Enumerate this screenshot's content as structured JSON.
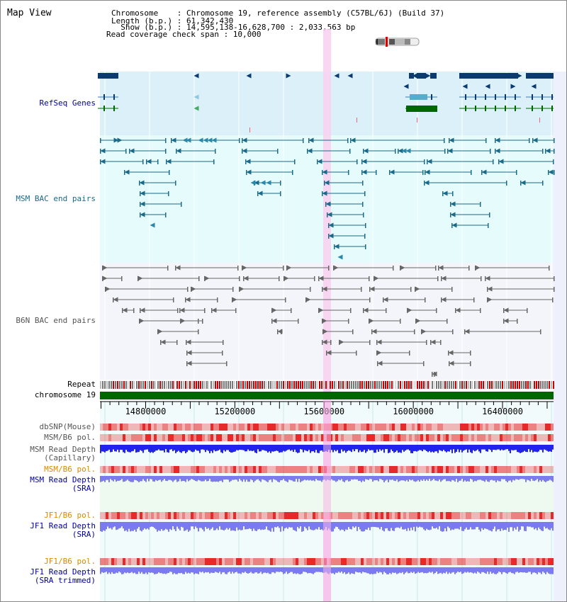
{
  "header": {
    "title": "Map View",
    "info_lines": [
      "Chromosome    : Chromosome 19, reference assembly (C57BL/6J) (Build 37)",
      "Length (b.p.) : 61,342,430",
      "  Show (b.p.) : 14,595,138-16,628,700 : 2,033,563 bp",
      "Read coverage check span : 10,000"
    ]
  },
  "tracks": {
    "refseq_genes": "RefSeq Genes",
    "msm_bac": "MSM BAC end pairs",
    "b6n_bac": "B6N BAC end pairs",
    "repeat": "Repeat",
    "chromosome": "chromosome 19",
    "dbsnp": "dbSNP(Mouse)",
    "msm_b6_pol_1": "MSM/B6 pol.",
    "msm_read_depth_cap": "MSM Read Depth\n(Capillary)",
    "msm_b6_pol_2": "MSM/B6 pol.",
    "msm_read_depth_sra": "MSM Read Depth\n(SRA)",
    "jf1_b6_pol_1": "JF1/B6 pol.",
    "jf1_read_depth_sra": "JF1 Read Depth\n(SRA)",
    "jf1_b6_pol_2": "JF1/B6 pol.",
    "jf1_read_depth_trim": "JF1 Read Depth\n(SRA trimmed)"
  },
  "ruler": {
    "start": 14595138,
    "end": 16628700,
    "ticks": [
      "14800000",
      "15200000",
      "15600000",
      "16000000",
      "16400000"
    ]
  },
  "colors": {
    "refseq_bg": "#dcf0fa",
    "msm_bg": "#e6fbfb",
    "b6n_bg": "#f4f4fb",
    "highlight": "#f8d0f0",
    "gene_dark": "#0b3a6e",
    "gene_green": "#006600",
    "msm_line": "#1a6a8a",
    "b6n_line": "#666666",
    "repeat_red": "#cc0000",
    "chrom_green": "#006600",
    "depth_blue": "#2222ee",
    "depth_light_blue": "#7b7bee",
    "label_blue": "#000099",
    "label_orange": "#dd8800",
    "label_gray": "#555555"
  }
}
